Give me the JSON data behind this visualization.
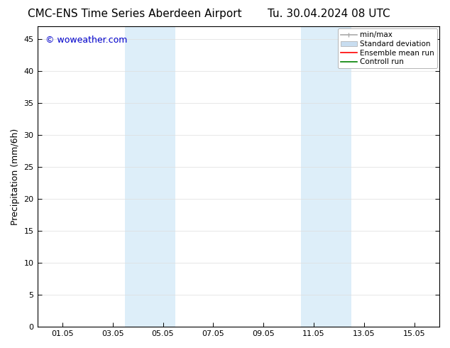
{
  "title": "CMC-ENS Time Series Aberdeen Airport",
  "title2": "Tu. 30.04.2024 08 UTC",
  "ylabel": "Precipitation (mm/6h)",
  "xlabel": "",
  "bg_color": "#ffffff",
  "plot_bg_color": "#ffffff",
  "ylim": [
    0,
    47
  ],
  "yticks": [
    0,
    5,
    10,
    15,
    20,
    25,
    30,
    35,
    40,
    45
  ],
  "xtick_labels": [
    "01.05",
    "03.05",
    "05.05",
    "07.05",
    "09.05",
    "11.05",
    "13.05",
    "15.05"
  ],
  "xtick_positions": [
    1,
    3,
    5,
    7,
    9,
    11,
    13,
    15
  ],
  "xlim": [
    0,
    16
  ],
  "shaded_bands": [
    {
      "x_start": 3.5,
      "x_end": 4.5,
      "color": "#ddeef9"
    },
    {
      "x_start": 4.5,
      "x_end": 5.5,
      "color": "#ddeef9"
    },
    {
      "x_start": 10.5,
      "x_end": 11.5,
      "color": "#ddeef9"
    },
    {
      "x_start": 11.5,
      "x_end": 12.5,
      "color": "#ddeef9"
    }
  ],
  "watermark_text": "© woweather.com",
  "watermark_color": "#0000cc",
  "watermark_fontsize": 9,
  "legend_items": [
    {
      "label": "min/max",
      "color": "#aaaaaa",
      "lw": 1.2,
      "style": "minmax"
    },
    {
      "label": "Standard deviation",
      "color": "#c8ddf0",
      "lw": 8,
      "style": "bar"
    },
    {
      "label": "Ensemble mean run",
      "color": "#ff0000",
      "lw": 1.2,
      "style": "line"
    },
    {
      "label": "Controll run",
      "color": "#008000",
      "lw": 1.2,
      "style": "line"
    }
  ],
  "title_fontsize": 11,
  "tick_fontsize": 8,
  "legend_fontsize": 7.5,
  "ylabel_fontsize": 9,
  "grid_color": "#dddddd",
  "tick_color": "#000000",
  "border_color": "#000000"
}
